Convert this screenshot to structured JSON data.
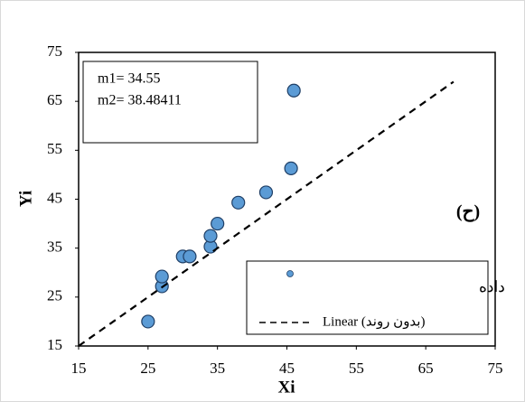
{
  "chart_data": {
    "type": "scatter",
    "x_label": "Xi",
    "y_label": "Yi",
    "xlim": [
      15,
      75
    ],
    "xticks": [
      15,
      25,
      35,
      45,
      55,
      65,
      75
    ],
    "ylim": [
      15,
      75
    ],
    "yticks": [
      15,
      25,
      35,
      45,
      55,
      65,
      75
    ],
    "annotations": [
      "m1= 34.55",
      "m2= 38.48411",
      "(ح)"
    ],
    "legend": "lower right",
    "series": [
      {
        "name": "داده",
        "color": "#5b9bd5",
        "style": "marker",
        "x": [
          25,
          27,
          27,
          30,
          31,
          34,
          34,
          35,
          38,
          42,
          45.6,
          46
        ],
        "values": [
          20,
          27.2,
          29.2,
          33.3,
          33.3,
          35.3,
          37.5,
          40,
          44.3,
          46.4,
          51.3,
          67.2
        ]
      },
      {
        "name": "Linear (بدون روند)",
        "color": "#000000",
        "style": "dashed",
        "x": [
          15,
          69
        ],
        "values": [
          15,
          69
        ]
      }
    ]
  }
}
